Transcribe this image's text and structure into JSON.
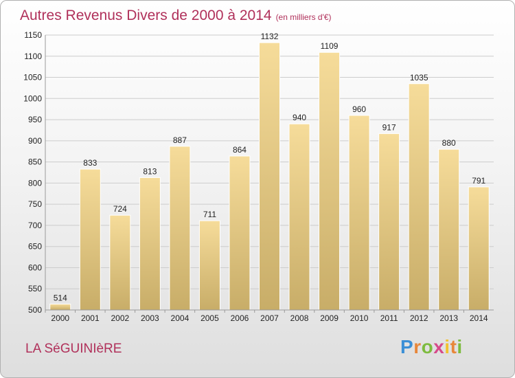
{
  "title": "Autres Revenus Divers de 2000 à 2014",
  "title_unit": "(en milliers d'€)",
  "location": "LA SéGUINIèRE",
  "logo_letters": [
    "P",
    "r",
    "o",
    "x",
    "i",
    "t",
    "i"
  ],
  "colors": {
    "title": "#b0305a",
    "bar_light": "#f6dc9a",
    "bar_dark": "#c8ad68",
    "grid": "#cccccc"
  },
  "chart_data": {
    "type": "bar",
    "title": "Autres Revenus Divers de 2000 à 2014",
    "xlabel": "",
    "ylabel": "",
    "ylim": [
      500,
      1150
    ],
    "yticks": [
      500,
      550,
      600,
      650,
      700,
      750,
      800,
      850,
      900,
      950,
      1000,
      1050,
      1100,
      1150
    ],
    "grid": true,
    "categories": [
      "2000",
      "2001",
      "2002",
      "2003",
      "2004",
      "2005",
      "2006",
      "2007",
      "2008",
      "2009",
      "2010",
      "2011",
      "2012",
      "2013",
      "2014"
    ],
    "values": [
      514,
      833,
      724,
      813,
      887,
      711,
      864,
      1132,
      940,
      1109,
      960,
      917,
      1035,
      880,
      791
    ]
  }
}
